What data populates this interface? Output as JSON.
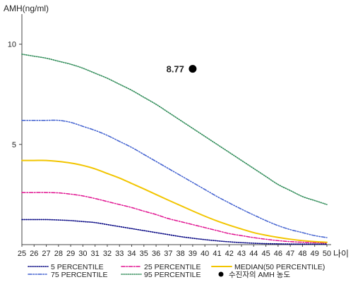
{
  "chart_data": {
    "type": "line",
    "title": "",
    "ylabel": "AMH(ng/ml)",
    "xlabel": "나이",
    "xlim": [
      25,
      50
    ],
    "ylim": [
      0,
      11.5
    ],
    "y_ticks": [
      5,
      10
    ],
    "x": [
      25,
      26,
      27,
      28,
      29,
      30,
      31,
      32,
      33,
      34,
      35,
      36,
      37,
      38,
      39,
      40,
      41,
      42,
      43,
      44,
      45,
      46,
      47,
      48,
      49,
      50
    ],
    "series": [
      {
        "name": "5 PERCENTILE",
        "color": "#000080",
        "dash": "dotted",
        "values": [
          1.25,
          1.25,
          1.25,
          1.23,
          1.2,
          1.15,
          1.1,
          1.0,
          0.9,
          0.8,
          0.7,
          0.6,
          0.5,
          0.4,
          0.32,
          0.25,
          0.19,
          0.14,
          0.1,
          0.07,
          0.05,
          0.04,
          0.03,
          0.03,
          0.03,
          0.03
        ]
      },
      {
        "name": "25 PERCENTILE",
        "color": "#e0108f",
        "dash": "dashdot",
        "values": [
          2.6,
          2.6,
          2.6,
          2.58,
          2.52,
          2.43,
          2.3,
          2.15,
          2.0,
          1.85,
          1.67,
          1.5,
          1.3,
          1.15,
          1.0,
          0.85,
          0.7,
          0.55,
          0.45,
          0.35,
          0.27,
          0.2,
          0.15,
          0.12,
          0.1,
          0.08
        ]
      },
      {
        "name": "MEDIAN(50 PERCENTILE)",
        "color": "#f2c500",
        "dash": "solid",
        "values": [
          4.2,
          4.2,
          4.2,
          4.15,
          4.07,
          3.95,
          3.78,
          3.55,
          3.32,
          3.05,
          2.78,
          2.5,
          2.22,
          1.95,
          1.68,
          1.42,
          1.18,
          0.97,
          0.78,
          0.6,
          0.47,
          0.36,
          0.27,
          0.2,
          0.15,
          0.12
        ]
      },
      {
        "name": "75 PERCENTILE",
        "color": "#3f5fcf",
        "dash": "dashdotdot",
        "values": [
          6.2,
          6.2,
          6.2,
          6.2,
          6.1,
          5.9,
          5.7,
          5.45,
          5.15,
          4.85,
          4.5,
          4.15,
          3.8,
          3.45,
          3.1,
          2.75,
          2.4,
          2.08,
          1.77,
          1.48,
          1.2,
          0.95,
          0.75,
          0.6,
          0.45,
          0.35
        ]
      },
      {
        "name": "95 PERCENTILE",
        "color": "#2e8b57",
        "dash": "dotted",
        "values": [
          9.5,
          9.4,
          9.3,
          9.15,
          9.0,
          8.8,
          8.55,
          8.3,
          8.0,
          7.7,
          7.35,
          7.0,
          6.6,
          6.2,
          5.8,
          5.4,
          5.0,
          4.6,
          4.2,
          3.8,
          3.4,
          3.0,
          2.7,
          2.4,
          2.2,
          2.0
        ]
      }
    ],
    "point": {
      "name": "수진자의 AMH 농도",
      "x": 39,
      "y": 8.77,
      "label": "8.77",
      "color": "#000000"
    },
    "legend_position": "bottom",
    "grid": false
  }
}
